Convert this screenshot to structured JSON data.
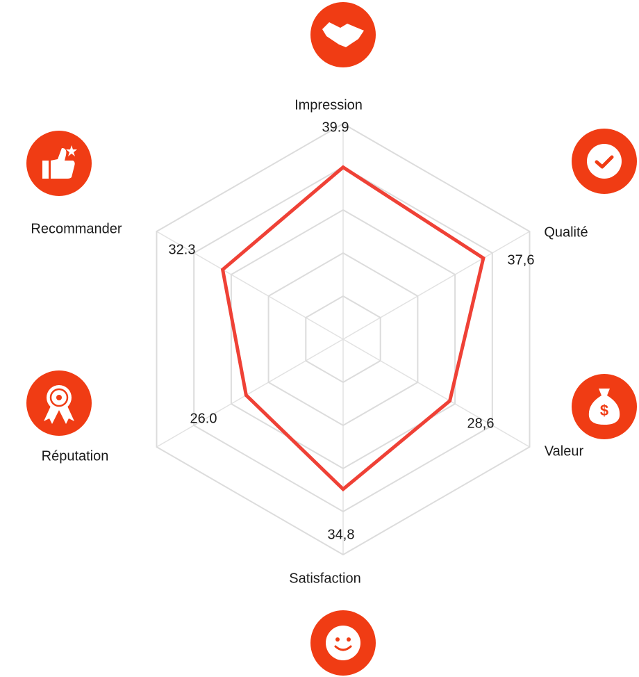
{
  "chart_data": {
    "type": "radar",
    "categories": [
      "Impression",
      "Qualité",
      "Valeur",
      "Satisfaction",
      "Réputation",
      "Recommander"
    ],
    "values": [
      39.9,
      37.6,
      28.6,
      34.8,
      26.0,
      32.3
    ],
    "value_labels": [
      "39.9",
      "37,6",
      "28,6",
      "34,8",
      "26.0",
      "32.3"
    ],
    "color": "#ef4136",
    "rlim": [
      0,
      50
    ],
    "rticks": [
      10,
      20,
      30,
      40,
      50
    ],
    "grid": true
  }
}
